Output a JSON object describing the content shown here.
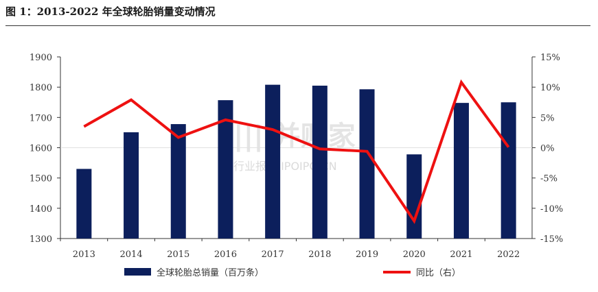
{
  "figure": {
    "title": "图 1：2013-2022 年全球轮胎销量变动情况"
  },
  "watermark": {
    "brand": "||| 并购家",
    "sub": "行业报告 IPOIPO.CN"
  },
  "chart_data": {
    "type": "bar+line",
    "categories": [
      "2013",
      "2014",
      "2015",
      "2016",
      "2017",
      "2018",
      "2019",
      "2020",
      "2021",
      "2022"
    ],
    "series": [
      {
        "name": "全球轮胎总销量（百万条）",
        "type": "bar",
        "axis": "left",
        "values": [
          1530,
          1651,
          1678,
          1757,
          1808,
          1805,
          1793,
          1578,
          1748,
          1750
        ]
      },
      {
        "name": "同比（右）",
        "type": "line",
        "axis": "right",
        "values": [
          3.5,
          7.9,
          1.7,
          4.6,
          3.0,
          -0.2,
          -0.6,
          -12.1,
          10.8,
          0.1
        ]
      }
    ],
    "y_left": {
      "min": 1300,
      "max": 1900,
      "ticks": [
        "1300",
        "1400",
        "1500",
        "1600",
        "1700",
        "1800",
        "1900"
      ]
    },
    "y_right": {
      "min": -15,
      "max": 15,
      "ticks": [
        "-15%",
        "-10%",
        "-5%",
        "0%",
        "5%",
        "10%",
        "15%"
      ]
    },
    "grid": false,
    "legend_position": "bottom",
    "colors": {
      "bar": "#0c1f5c",
      "line": "#ee1111"
    }
  }
}
